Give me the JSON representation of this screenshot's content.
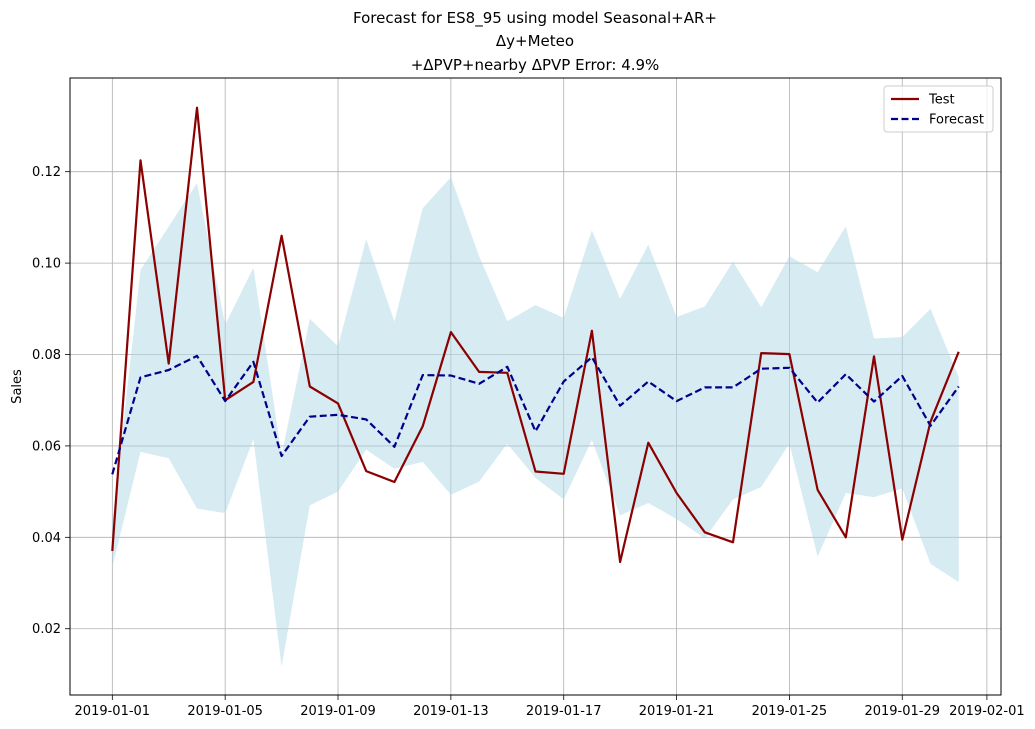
{
  "chart_data": {
    "type": "line",
    "title_lines": [
      "Forecast for ES8_95 using model Seasonal+AR+",
      "Δy+Meteo",
      "+ΔPVP+nearby ΔPVP Error: 4.9%"
    ],
    "xlabel": "",
    "ylabel": "Sales",
    "x": [
      "2019-01-01",
      "2019-01-02",
      "2019-01-03",
      "2019-01-04",
      "2019-01-05",
      "2019-01-06",
      "2019-01-07",
      "2019-01-08",
      "2019-01-09",
      "2019-01-10",
      "2019-01-11",
      "2019-01-12",
      "2019-01-13",
      "2019-01-14",
      "2019-01-15",
      "2019-01-16",
      "2019-01-17",
      "2019-01-18",
      "2019-01-19",
      "2019-01-20",
      "2019-01-21",
      "2019-01-22",
      "2019-01-23",
      "2019-01-24",
      "2019-01-25",
      "2019-01-26",
      "2019-01-27",
      "2019-01-28",
      "2019-01-29",
      "2019-01-30",
      "2019-01-31"
    ],
    "xticks": [
      "2019-01-01",
      "2019-01-05",
      "2019-01-09",
      "2019-01-13",
      "2019-01-17",
      "2019-01-21",
      "2019-01-25",
      "2019-01-29",
      "2019-02-01"
    ],
    "xlim": [
      "2018-12-30T12:00",
      "2019-02-01T12:00"
    ],
    "ylim": [
      0.0055,
      0.1405
    ],
    "yticks": [
      0.02,
      0.04,
      0.06,
      0.08,
      0.1,
      0.12
    ],
    "ytick_labels": [
      "0.02",
      "0.04",
      "0.06",
      "0.08",
      "0.10",
      "0.12"
    ],
    "grid": true,
    "legend_position": "top-right",
    "series": [
      {
        "name": "Test",
        "style": "solid",
        "color": "#8b0000",
        "values": [
          0.037,
          0.1225,
          0.078,
          0.134,
          0.07,
          0.074,
          0.106,
          0.073,
          0.0693,
          0.0545,
          0.0521,
          0.0643,
          0.0849,
          0.0762,
          0.076,
          0.0544,
          0.0539,
          0.0852,
          0.0346,
          0.0607,
          0.0497,
          0.0411,
          0.0389,
          0.0803,
          0.0801,
          0.0504,
          0.04,
          0.0796,
          0.0395,
          0.0653,
          0.0806
        ]
      },
      {
        "name": "Forecast",
        "style": "dashed",
        "color": "#00008b",
        "values": [
          0.0538,
          0.075,
          0.0766,
          0.0797,
          0.0698,
          0.0784,
          0.0578,
          0.0664,
          0.0668,
          0.0658,
          0.0598,
          0.0755,
          0.0754,
          0.0736,
          0.0773,
          0.0632,
          0.0741,
          0.0794,
          0.0688,
          0.0741,
          0.0698,
          0.0728,
          0.0728,
          0.0769,
          0.0771,
          0.0695,
          0.0757,
          0.0697,
          0.0753,
          0.0644,
          0.073
        ]
      }
    ],
    "band": {
      "color": "#add8e6",
      "upper": [
        0.043,
        0.0985,
        0.108,
        0.1175,
        0.0865,
        0.099,
        0.058,
        0.0878,
        0.0818,
        0.1052,
        0.0872,
        0.112,
        0.1188,
        0.1015,
        0.0873,
        0.0908,
        0.088,
        0.1072,
        0.0922,
        0.104,
        0.0882,
        0.0905,
        0.1003,
        0.0903,
        0.1015,
        0.098,
        0.108,
        0.0835,
        0.0838,
        0.09,
        0.075
      ],
      "lower": [
        0.0335,
        0.0587,
        0.0573,
        0.0463,
        0.0453,
        0.0615,
        0.0117,
        0.047,
        0.05,
        0.0592,
        0.055,
        0.0565,
        0.0493,
        0.0522,
        0.0605,
        0.053,
        0.0483,
        0.0613,
        0.0448,
        0.0475,
        0.044,
        0.0398,
        0.0483,
        0.051,
        0.0605,
        0.0358,
        0.0497,
        0.0488,
        0.0507,
        0.0342,
        0.0302
      ]
    }
  }
}
